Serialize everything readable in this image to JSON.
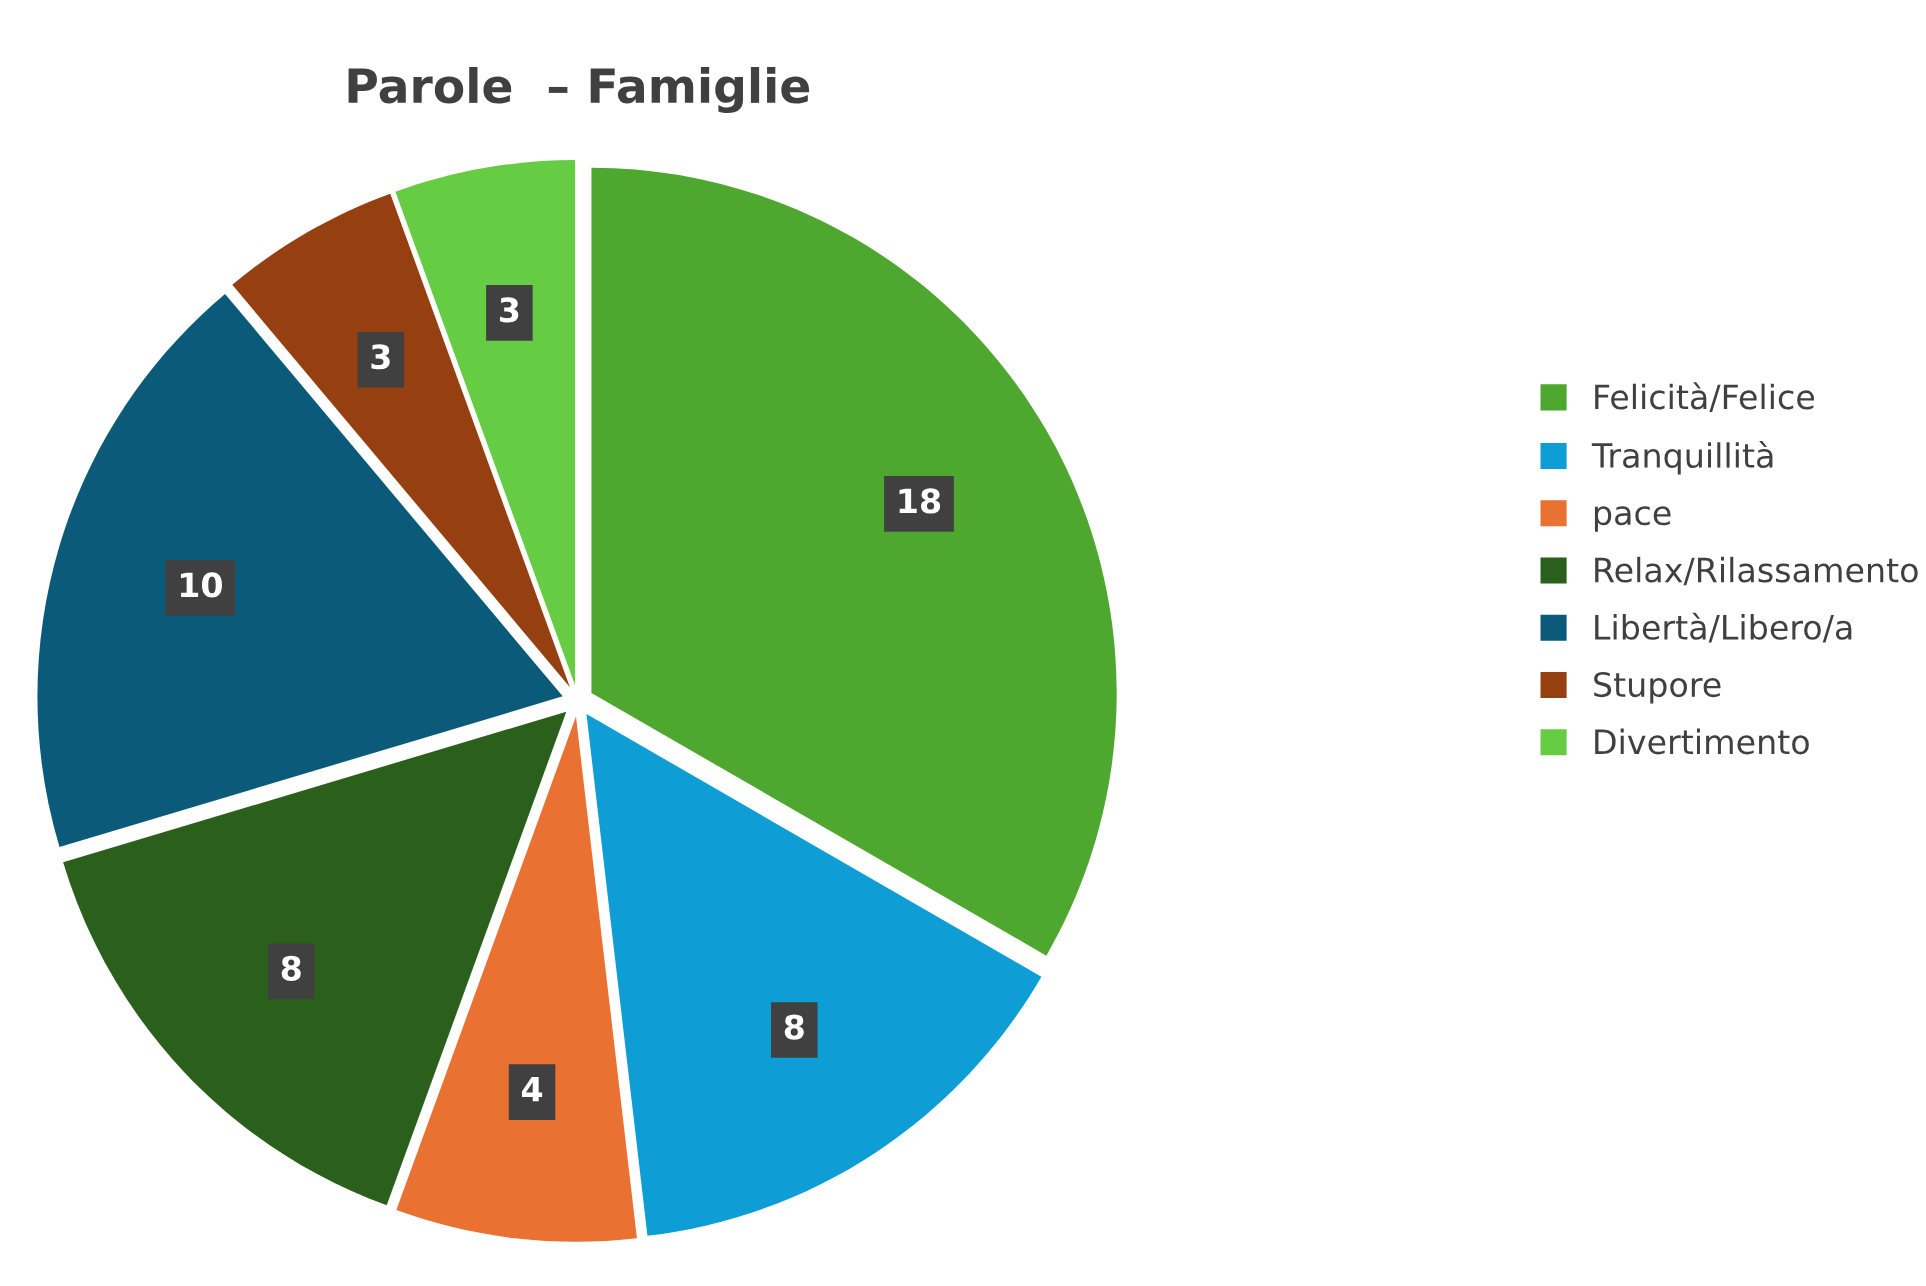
{
  "chart_data": {
    "type": "pie",
    "title": "Parole  – Famiglie",
    "categories": [
      "Felicità/Felice",
      "Tranquillità",
      "pace",
      "Relax/Rilassamento",
      "Libertà/Libero/a",
      "Stupore",
      "Divertimento"
    ],
    "values": [
      18,
      8,
      4,
      8,
      10,
      3,
      3
    ],
    "colors": [
      "#4ea72e",
      "#0e9ed5",
      "#e97132",
      "#2b5f1c",
      "#0b5a7a",
      "#963f10",
      "#66cc44"
    ],
    "data_labels": true,
    "legend": "right"
  }
}
